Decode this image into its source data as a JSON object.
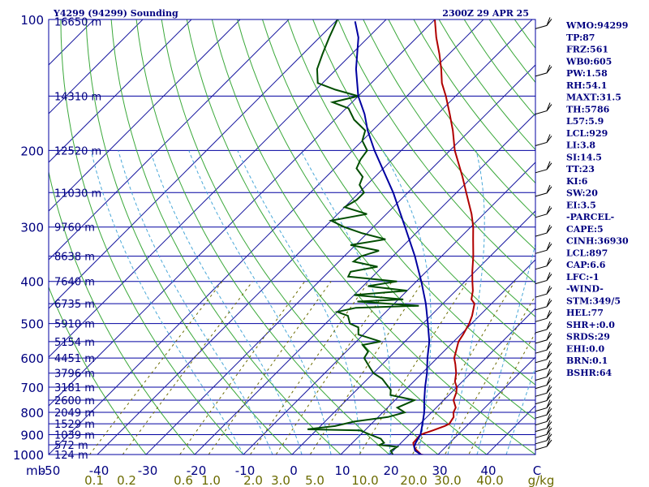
{
  "header": {
    "station": "Y4299 (94299) Sounding",
    "time": "2300Z 29 APR 25"
  },
  "chart_data": {
    "type": "line",
    "title": "Y4299 (94299) Sounding",
    "subtitle": "2300Z 29 APR 25",
    "pressure_axis": {
      "scale": "log",
      "range": [
        100,
        1000
      ],
      "ticks": [
        {
          "p": 100,
          "label": "100"
        },
        {
          "p": 200,
          "label": "200"
        },
        {
          "p": 300,
          "label": "300"
        },
        {
          "p": 400,
          "label": "400"
        },
        {
          "p": 500,
          "label": "500"
        },
        {
          "p": 600,
          "label": "600"
        },
        {
          "p": 700,
          "label": "700"
        },
        {
          "p": 800,
          "label": "800"
        },
        {
          "p": 900,
          "label": "900"
        },
        {
          "p": 1000,
          "label": "1000"
        }
      ],
      "corner_label": "mb"
    },
    "temperature_axis": {
      "range": [
        -50,
        50
      ],
      "ticks": [
        "-50",
        "-40",
        "-30",
        "-20",
        "-10",
        "0",
        "10",
        "20",
        "30",
        "40",
        "C"
      ]
    },
    "mixing_ratio_axis": {
      "ticks": [
        "0.1",
        "0.2",
        "0.6",
        "1.0",
        "2.0",
        "3.0",
        "5.0",
        "10.0",
        "20.0",
        "30.0",
        "40.0",
        "g/kg"
      ]
    },
    "height_levels": [
      {
        "p": 101,
        "label": "16650 m"
      },
      {
        "p": 150,
        "label": "14310 m"
      },
      {
        "p": 200,
        "label": "12520 m"
      },
      {
        "p": 250,
        "label": "11030 m"
      },
      {
        "p": 300,
        "label": "9760 m"
      },
      {
        "p": 350,
        "label": "8638 m"
      },
      {
        "p": 400,
        "label": "7640 m"
      },
      {
        "p": 450,
        "label": "6735 m"
      },
      {
        "p": 500,
        "label": "5910 m"
      },
      {
        "p": 550,
        "label": "5154 m"
      },
      {
        "p": 600,
        "label": "4451 m"
      },
      {
        "p": 650,
        "label": "3796 m"
      },
      {
        "p": 700,
        "label": "3181 m"
      },
      {
        "p": 750,
        "label": "2600 m"
      },
      {
        "p": 800,
        "label": "2049 m"
      },
      {
        "p": 850,
        "label": "1529 m"
      },
      {
        "p": 900,
        "label": "1039 m"
      },
      {
        "p": 950,
        "label": "572 m"
      },
      {
        "p": 1000,
        "label": "124 m"
      }
    ],
    "series": [
      {
        "name": "",
        "role": "temperature",
        "color": "#b00000",
        "points": [
          [
            1005,
            28.0
          ],
          [
            1000,
            26.5
          ],
          [
            975,
            24.5
          ],
          [
            960,
            23.5
          ],
          [
            940,
            22.5
          ],
          [
            900,
            22.3
          ],
          [
            880,
            24.0
          ],
          [
            860,
            25.5
          ],
          [
            850,
            26.0
          ],
          [
            820,
            25.5
          ],
          [
            800,
            24.5
          ],
          [
            780,
            24.0
          ],
          [
            750,
            22.0
          ],
          [
            720,
            21.0
          ],
          [
            700,
            20.0
          ],
          [
            680,
            18.5
          ],
          [
            650,
            17.0
          ],
          [
            620,
            15.0
          ],
          [
            600,
            13.5
          ],
          [
            550,
            11.0
          ],
          [
            530,
            10.5
          ],
          [
            500,
            9.5
          ],
          [
            480,
            8.5
          ],
          [
            450,
            6.5
          ],
          [
            440,
            5.0
          ],
          [
            420,
            3.5
          ],
          [
            400,
            1.5
          ],
          [
            380,
            -0.5
          ],
          [
            350,
            -3.5
          ],
          [
            320,
            -7.0
          ],
          [
            300,
            -9.5
          ],
          [
            280,
            -12.5
          ],
          [
            250,
            -18.0
          ],
          [
            230,
            -22.0
          ],
          [
            200,
            -29.0
          ],
          [
            180,
            -33.5
          ],
          [
            165,
            -37.5
          ],
          [
            150,
            -42.0
          ],
          [
            140,
            -45.5
          ],
          [
            130,
            -48.5
          ],
          [
            120,
            -52.0
          ],
          [
            110,
            -56.0
          ],
          [
            100,
            -60.0
          ]
        ]
      },
      {
        "name": "",
        "role": "dewpoint",
        "color": "#004d00",
        "points": [
          [
            1005,
            21.0
          ],
          [
            980,
            19.5
          ],
          [
            960,
            20.0
          ],
          [
            950,
            16.0
          ],
          [
            940,
            16.5
          ],
          [
            920,
            15.0
          ],
          [
            900,
            12.0
          ],
          [
            880,
            9.0
          ],
          [
            875,
            -2.0
          ],
          [
            860,
            3.0
          ],
          [
            840,
            6.0
          ],
          [
            820,
            12.0
          ],
          [
            800,
            14.5
          ],
          [
            780,
            12.0
          ],
          [
            750,
            14.0
          ],
          [
            730,
            8.0
          ],
          [
            710,
            7.0
          ],
          [
            690,
            5.0
          ],
          [
            670,
            3.0
          ],
          [
            650,
            0.0
          ],
          [
            630,
            -2.0
          ],
          [
            600,
            -5.0
          ],
          [
            580,
            -5.5
          ],
          [
            560,
            -8.0
          ],
          [
            550,
            -5.0
          ],
          [
            530,
            -11.0
          ],
          [
            510,
            -12.5
          ],
          [
            500,
            -15.0
          ],
          [
            480,
            -17.0
          ],
          [
            470,
            -20.0
          ],
          [
            460,
            -17.0
          ],
          [
            455,
            -4.5
          ],
          [
            445,
            -18.0
          ],
          [
            440,
            -9.0
          ],
          [
            430,
            -20.0
          ],
          [
            420,
            -10.0
          ],
          [
            410,
            -19.0
          ],
          [
            400,
            -14.0
          ],
          [
            390,
            -25.0
          ],
          [
            380,
            -25.5
          ],
          [
            370,
            -21.0
          ],
          [
            360,
            -27.0
          ],
          [
            350,
            -26.5
          ],
          [
            340,
            -24.0
          ],
          [
            330,
            -31.0
          ],
          [
            320,
            -25.0
          ],
          [
            310,
            -31.0
          ],
          [
            300,
            -36.0
          ],
          [
            290,
            -40.0
          ],
          [
            280,
            -34.0
          ],
          [
            270,
            -40.0
          ],
          [
            260,
            -39.0
          ],
          [
            250,
            -39.0
          ],
          [
            240,
            -41.5
          ],
          [
            230,
            -42.5
          ],
          [
            220,
            -45.5
          ],
          [
            210,
            -46.5
          ],
          [
            200,
            -47.0
          ],
          [
            190,
            -50.0
          ],
          [
            180,
            -51.5
          ],
          [
            170,
            -56.0
          ],
          [
            160,
            -59.5
          ],
          [
            155,
            -64.0
          ],
          [
            150,
            -60.0
          ],
          [
            145,
            -66.0
          ],
          [
            140,
            -71.0
          ],
          [
            130,
            -74.0
          ],
          [
            120,
            -76.0
          ],
          [
            110,
            -78.0
          ],
          [
            100,
            -80.0
          ]
        ]
      },
      {
        "name": "",
        "role": "parcel",
        "color": "#0000a0",
        "points": [
          [
            1005,
            27.0
          ],
          [
            980,
            24.5
          ],
          [
            960,
            23.5
          ],
          [
            940,
            23.0
          ],
          [
            900,
            22.3
          ],
          [
            850,
            20.5
          ],
          [
            800,
            18.5
          ],
          [
            750,
            16.0
          ],
          [
            700,
            13.5
          ],
          [
            650,
            11.0
          ],
          [
            600,
            8.0
          ],
          [
            550,
            5.0
          ],
          [
            500,
            1.0
          ],
          [
            450,
            -3.5
          ],
          [
            400,
            -9.0
          ],
          [
            350,
            -15.5
          ],
          [
            300,
            -23.5
          ],
          [
            250,
            -33.0
          ],
          [
            200,
            -45.5
          ],
          [
            180,
            -51.0
          ],
          [
            165,
            -55.0
          ],
          [
            150,
            -60.0
          ],
          [
            130,
            -66.0
          ],
          [
            110,
            -72.0
          ],
          [
            101,
            -76.0
          ]
        ]
      }
    ],
    "indices": [
      "WMO:94299",
      "TP:87",
      "FRZ:561",
      "WB0:605",
      "PW:1.58",
      "RH:54.1",
      "MAXT:31.5",
      "TH:5786",
      "L57:5.9",
      "LCL:929",
      "LI:3.8",
      "SI:14.5",
      "TT:23",
      "KI:6",
      "SW:20",
      "EI:3.5",
      "-PARCEL-",
      "CAPE:5",
      "CINH:36930",
      "LCL:897",
      "CAP:6.6",
      "LFC:-1",
      "-WIND-",
      "STM:349/5",
      "HEL:77",
      "SHR+:0.0",
      "SRDS:29",
      "EHI:0.0",
      "BRN:0.1",
      "BSHR:64"
    ],
    "colors": {
      "isobar": "#0000a0",
      "isotherm": "#1a1aa0",
      "dry_adiabat": "#3aa83a",
      "moist_adiabat": "#4aa8d8",
      "mixing_ratio": "#6b6b00",
      "temperature": "#b00000",
      "dewpoint": "#004d00",
      "parcel": "#0000a0",
      "text": "#000080"
    }
  }
}
